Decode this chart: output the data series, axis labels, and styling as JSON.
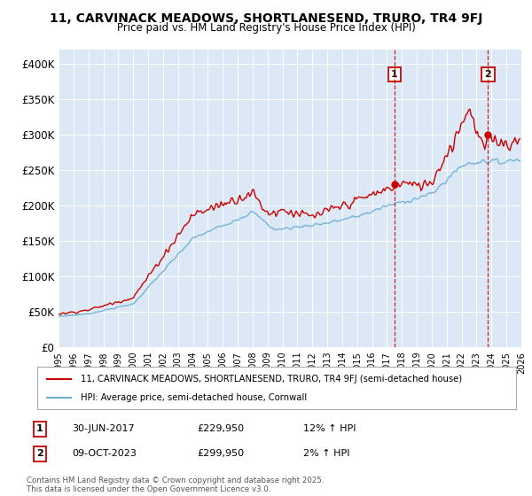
{
  "title": "11, CARVINACK MEADOWS, SHORTLANESEND, TRURO, TR4 9FJ",
  "subtitle": "Price paid vs. HM Land Registry's House Price Index (HPI)",
  "ylabel_ticks": [
    "£0",
    "£50K",
    "£100K",
    "£150K",
    "£200K",
    "£250K",
    "£300K",
    "£350K",
    "£400K"
  ],
  "ytick_values": [
    0,
    50000,
    100000,
    150000,
    200000,
    250000,
    300000,
    350000,
    400000
  ],
  "ylim": [
    0,
    420000
  ],
  "xlim_start": 1995.0,
  "xlim_end": 2026.0,
  "hpi_color": "#6aaed6",
  "price_color": "#cc0000",
  "bg_color": "#dce8f5",
  "marker1_date": 2017.5,
  "marker2_date": 2023.77,
  "marker1_price": 229950,
  "marker2_price": 299950,
  "marker1_label": "30-JUN-2017",
  "marker2_label": "09-OCT-2023",
  "marker1_hpi_pct": "12% ↑ HPI",
  "marker2_hpi_pct": "2% ↑ HPI",
  "legend_line1": "11, CARVINACK MEADOWS, SHORTLANESEND, TRURO, TR4 9FJ (semi-detached house)",
  "legend_line2": "HPI: Average price, semi-detached house, Cornwall",
  "footnote": "Contains HM Land Registry data © Crown copyright and database right 2025.\nThis data is licensed under the Open Government Licence v3.0.",
  "table_label1": "1",
  "table_label2": "2"
}
